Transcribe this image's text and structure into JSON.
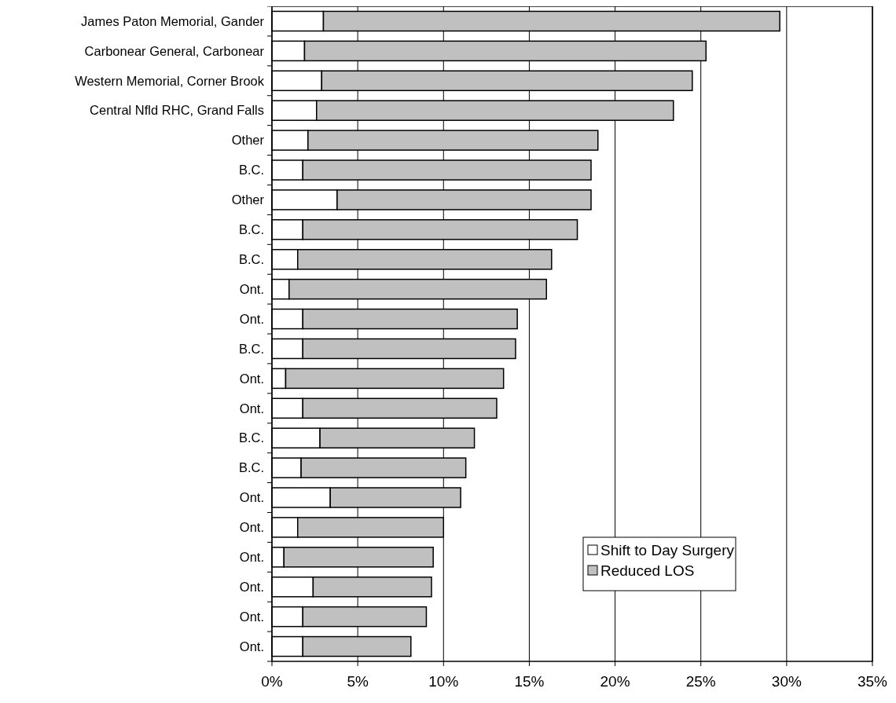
{
  "chart_data": {
    "type": "bar",
    "orientation": "horizontal",
    "stacked": true,
    "categories": [
      "James Paton Memorial, Gander",
      "Carbonear General, Carbonear",
      "Western Memorial, Corner Brook",
      "Central Nfld RHC, Grand Falls",
      "Other",
      "B.C.",
      "Other",
      "B.C.",
      "B.C.",
      "Ont.",
      "Ont.",
      "B.C.",
      "Ont.",
      "Ont.",
      "B.C.",
      "B.C.",
      "Ont.",
      "Ont.",
      "Ont.",
      "Ont.",
      "Ont.",
      "Ont."
    ],
    "series": [
      {
        "name": "Shift to Day Surgery",
        "color": "#ffffff",
        "values": [
          3.0,
          1.9,
          2.9,
          2.6,
          2.1,
          1.8,
          3.8,
          1.8,
          1.5,
          1.0,
          1.8,
          1.8,
          0.8,
          1.8,
          2.8,
          1.7,
          3.4,
          1.5,
          0.7,
          2.4,
          1.8,
          1.8
        ]
      },
      {
        "name": "Reduced LOS",
        "color": "#c0c0c0",
        "values": [
          26.6,
          23.4,
          21.6,
          20.8,
          16.9,
          16.8,
          14.8,
          16.0,
          14.8,
          15.0,
          12.5,
          12.4,
          12.7,
          11.3,
          9.0,
          9.6,
          7.6,
          8.5,
          8.7,
          6.9,
          7.2,
          6.3
        ]
      }
    ],
    "xlim": [
      0,
      35
    ],
    "xticks": [
      {
        "value": 0,
        "label": "0%"
      },
      {
        "value": 5,
        "label": "5%"
      },
      {
        "value": 10,
        "label": "10%"
      },
      {
        "value": 15,
        "label": "15%"
      },
      {
        "value": 20,
        "label": "20%"
      },
      {
        "value": 25,
        "label": "25%"
      },
      {
        "value": 30,
        "label": "30%"
      },
      {
        "value": 35,
        "label": "35%"
      }
    ],
    "grid": "x",
    "legend": "bottom right"
  }
}
